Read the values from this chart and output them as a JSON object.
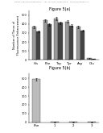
{
  "fig_title_top": "Figure 5(a)",
  "fig_title_bottom": "Figure 5(b)",
  "header_text": "Patent Application Publication    Apr. 10, 2014  Sheet 5 of 6    US 2014/0096904 A1",
  "chart_a": {
    "categories": [
      "His",
      "Phe",
      "Trp",
      "Tyr",
      "Asp",
      "Glu"
    ],
    "series1": [
      370,
      440,
      460,
      430,
      370,
      18
    ],
    "series2": [
      320,
      395,
      415,
      385,
      325,
      12
    ],
    "ylabel": "Number of Times of\nFluorescence Enhancement",
    "ylim": [
      0,
      550
    ],
    "yticks": [
      0,
      100,
      200,
      300,
      400,
      500
    ],
    "bar_color1": "#999999",
    "bar_color2": "#444444",
    "error1": [
      12,
      15,
      18,
      15,
      12,
      3
    ],
    "error2": [
      10,
      12,
      15,
      12,
      10,
      3
    ]
  },
  "chart_b": {
    "categories": [
      "Phe",
      "1",
      "2",
      "3"
    ],
    "values": [
      490,
      3,
      3,
      3
    ],
    "ylim": [
      0,
      560
    ],
    "yticks": [
      0,
      100,
      200,
      300,
      400,
      500
    ],
    "bar_color": "#bbbbbb",
    "error": [
      15,
      1,
      1,
      1
    ]
  },
  "bg_color": "#ffffff"
}
